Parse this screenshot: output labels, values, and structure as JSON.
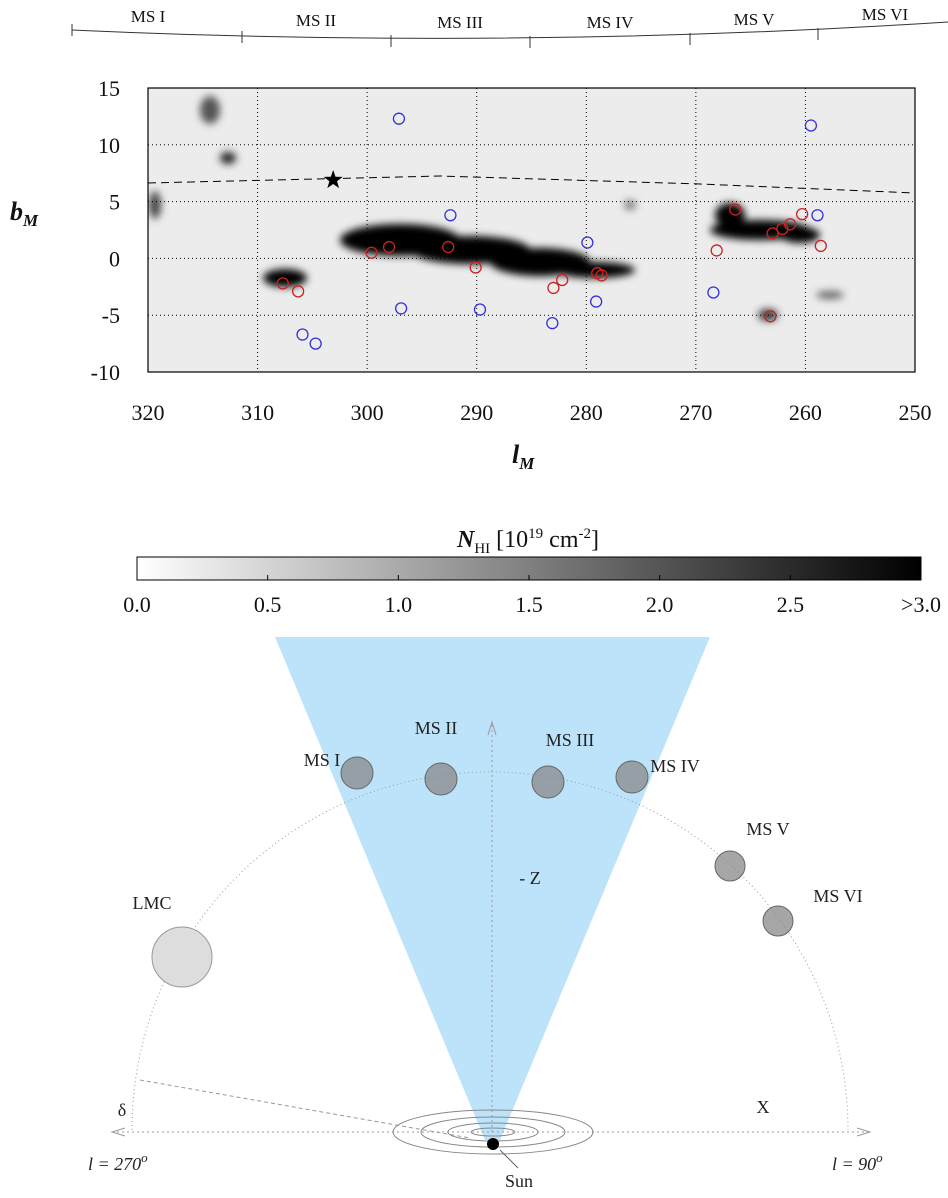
{
  "segments": [
    "MS I",
    "MS II",
    "MS III",
    "MS IV",
    "MS V",
    "MS VI"
  ],
  "chart_data": [
    {
      "type": "scatter",
      "xlabel": {
        "main": "l",
        "sub": "M"
      },
      "ylabel": {
        "main": "b",
        "sub": "M"
      },
      "xlim": [
        320,
        250
      ],
      "ylim": [
        -10,
        15
      ],
      "xticks": [
        320,
        310,
        300,
        290,
        280,
        270,
        260,
        250
      ],
      "yticks": [
        -10,
        -5,
        0,
        5,
        10,
        15
      ],
      "grid": true,
      "series": [
        {
          "color": "#3333dd",
          "marker": "circle",
          "x": [
            297.1,
            292.4,
            296.9,
            279.9,
            289.7,
            279.1,
            283.1,
            268.4,
            259.5,
            258.9,
            305.9,
            304.7
          ],
          "values": [
            12.3,
            3.8,
            -4.4,
            1.4,
            -4.5,
            -3.8,
            -5.7,
            -3.0,
            11.7,
            3.8,
            -6.7,
            -7.5
          ]
        },
        {
          "color": "#cc2222",
          "marker": "circle",
          "x": [
            307.7,
            306.3,
            299.6,
            298.0,
            292.6,
            290.1,
            283.0,
            282.2,
            279.0,
            278.6,
            266.4,
            268.1,
            263.0,
            262.1,
            261.4,
            260.3,
            258.6,
            263.2
          ],
          "values": [
            -2.2,
            -2.9,
            0.5,
            1.0,
            1.0,
            -0.8,
            -2.6,
            -1.9,
            -1.3,
            -1.5,
            4.3,
            0.7,
            2.2,
            2.6,
            3.0,
            3.9,
            1.1,
            -5.1
          ]
        },
        {
          "color": "#000000",
          "marker": "star",
          "x": [
            303.1
          ],
          "values": [
            6.9
          ]
        }
      ]
    },
    {
      "type": "colorbar",
      "label": {
        "symbol": "N",
        "sub": "HI",
        "pre": " [10",
        "exp": "19",
        "unit": " cm",
        "unit_exp": "-2",
        "close": "]"
      },
      "xlim": [
        0,
        3
      ],
      "xticks": [
        {
          "value": 0,
          "label": "0.0"
        },
        0.5,
        {
          "value": 1,
          "label": "1.0"
        },
        1.5,
        {
          "value": 2,
          "label": "2.0"
        },
        2.5,
        {
          "value": 3,
          "label": ">3.0"
        }
      ]
    }
  ],
  "diagram": {
    "nodes": [
      "MS I",
      "MS II",
      "MS III",
      "MS IV",
      "MS V",
      "MS VI",
      "LMC"
    ],
    "axis_z": "- Z",
    "axis_x": "X",
    "delta": "δ",
    "left": {
      "text": "l = 270",
      "sup": "o"
    },
    "right": {
      "text": "l = 90",
      "sup": "o"
    },
    "sun": "Sun"
  }
}
